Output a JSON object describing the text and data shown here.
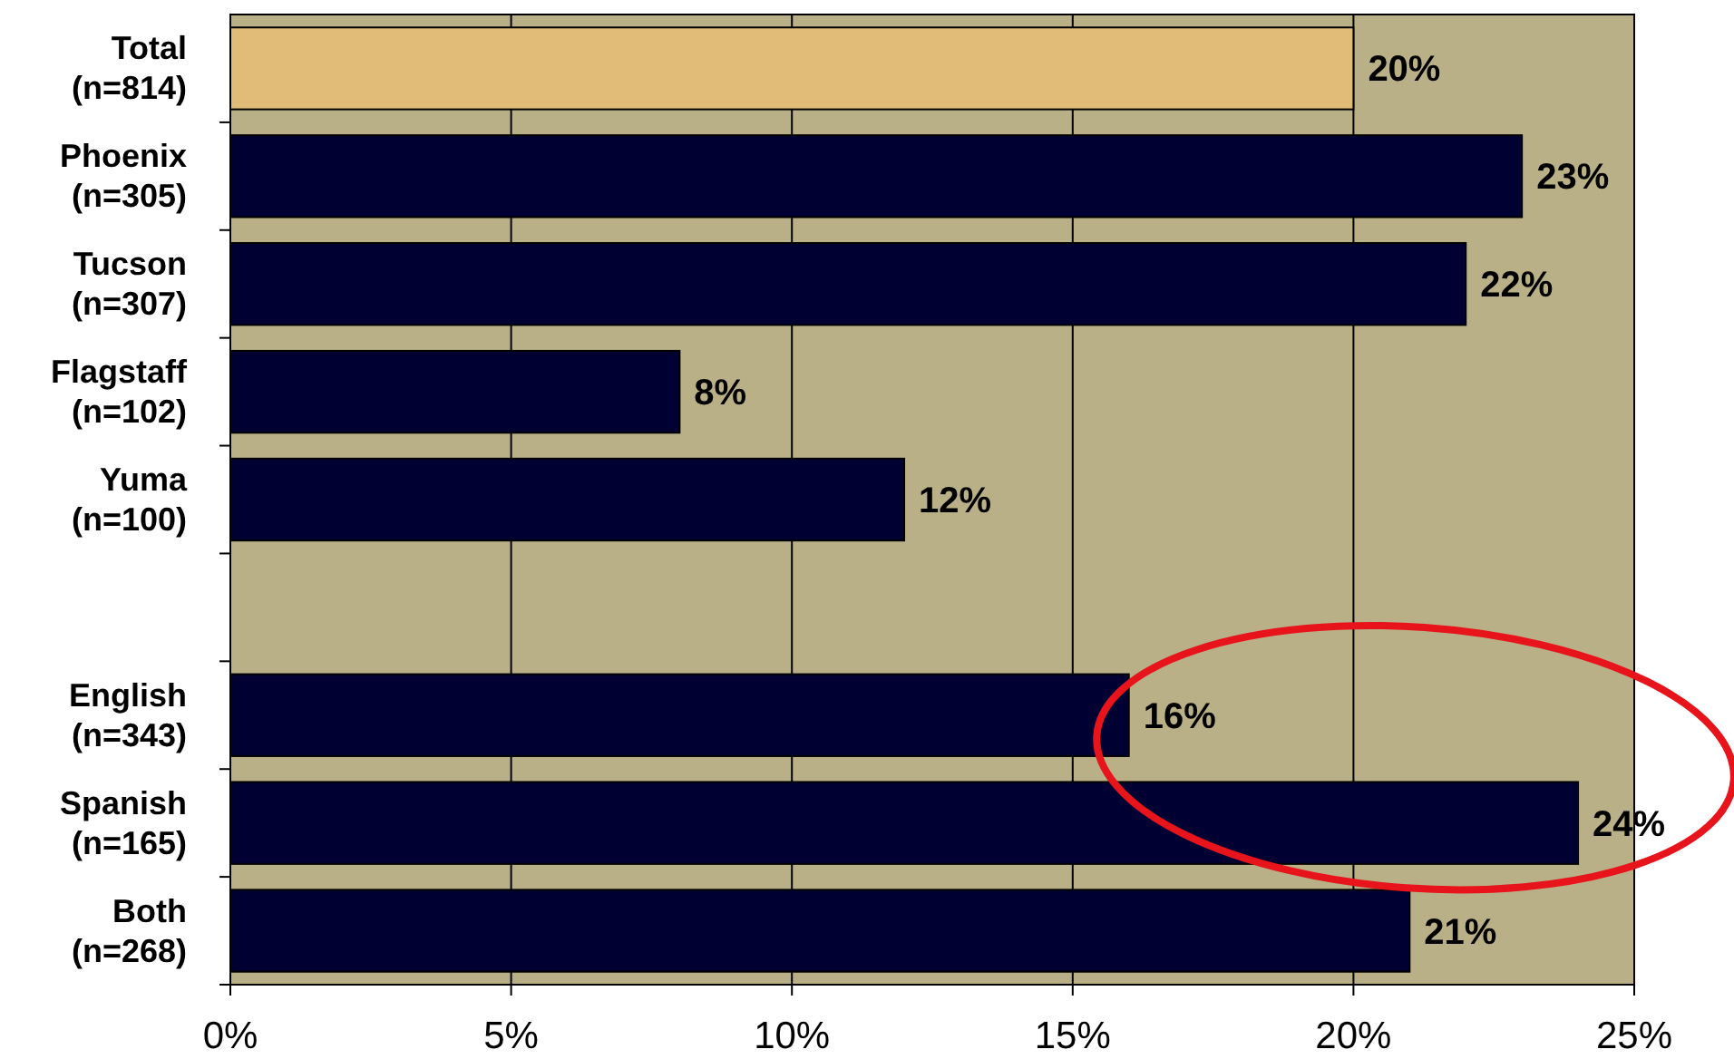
{
  "chart_data": {
    "type": "bar",
    "orientation": "horizontal",
    "categories": [
      "Total\n(n=814)",
      "Phoenix\n(n=305)",
      "Tucson\n(n=307)",
      "Flagstaff\n(n=102)",
      "Yuma\n(n=100)",
      null,
      "English\n(n=343)",
      "Spanish\n(n=165)",
      "Both\n(n=268)"
    ],
    "values": [
      20,
      23,
      22,
      8,
      12,
      null,
      16,
      24,
      21
    ],
    "colors": [
      "#e0bc78",
      "#000033",
      "#000033",
      "#000033",
      "#000033",
      null,
      "#000033",
      "#000033",
      "#000033"
    ],
    "value_labels": [
      "20%",
      "23%",
      "22%",
      "8%",
      "12%",
      null,
      "16%",
      "24%",
      "21%"
    ],
    "xlim": [
      0,
      25
    ],
    "xticks": [
      {
        "value": 0,
        "label": "0%"
      },
      {
        "value": 5,
        "label": "5%"
      },
      {
        "value": 10,
        "label": "10%"
      },
      {
        "value": 15,
        "label": "15%"
      },
      {
        "value": 20,
        "label": "20%"
      },
      {
        "value": 25,
        "label": "25%"
      }
    ],
    "grid": "x"
  }
}
